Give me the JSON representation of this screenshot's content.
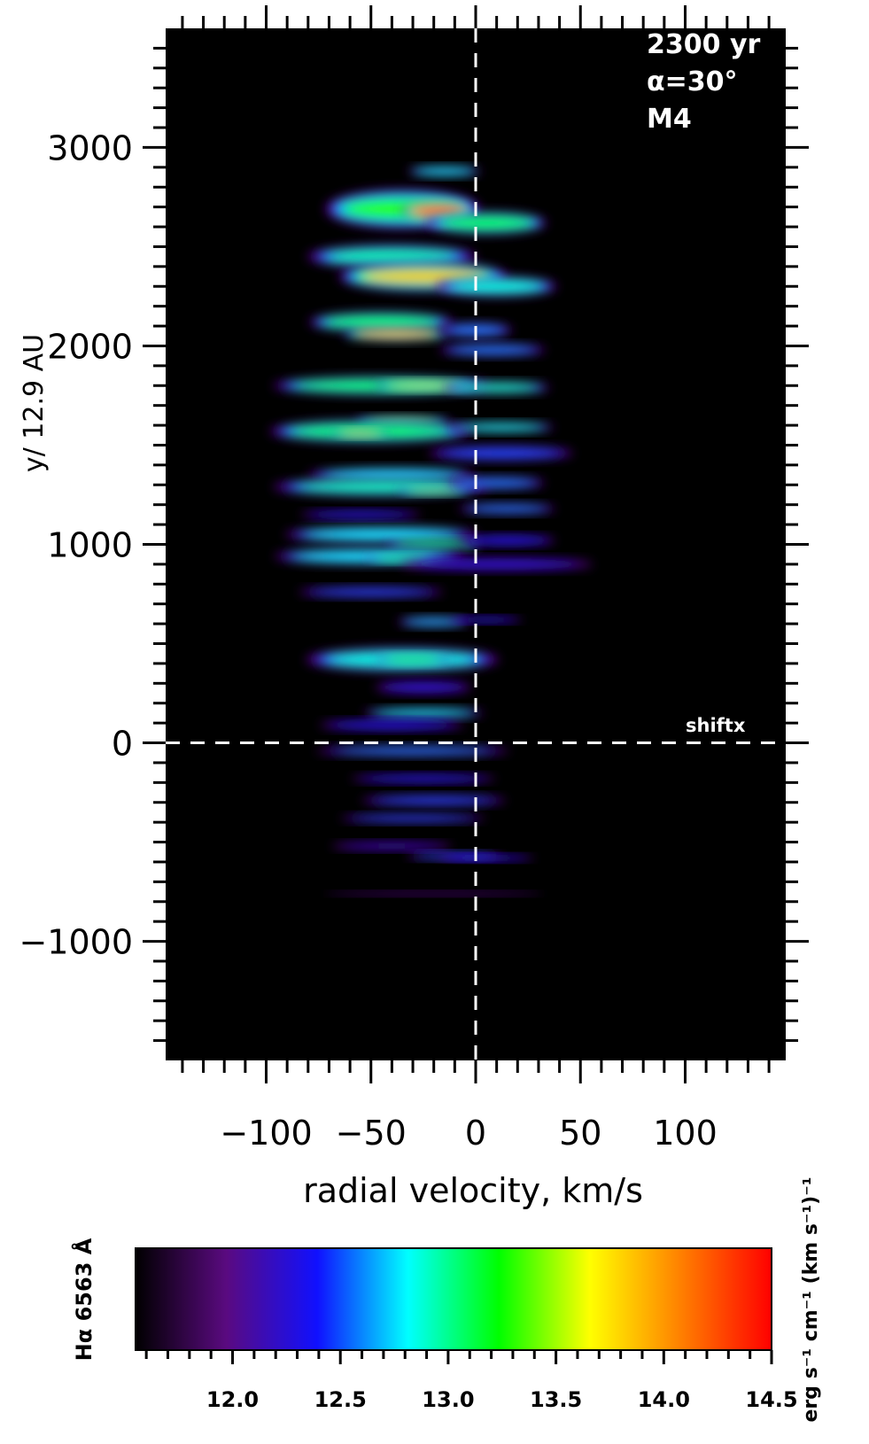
{
  "chart_data": [
    {
      "type": "heatmap",
      "xlabel": "radial velocity, km/s",
      "ylabel": "y/ 12.9 AU",
      "xlim": [
        -148,
        148
      ],
      "ylim": [
        -1600,
        3600
      ],
      "xticks": [
        -100,
        -50,
        0,
        50,
        100
      ],
      "xtick_labels": [
        "−100",
        "−50",
        "0",
        "50",
        "100"
      ],
      "yticks": [
        -1000,
        0,
        1000,
        2000,
        3000
      ],
      "ytick_labels": [
        "−1000",
        "0",
        "1000",
        "2000",
        "3000"
      ],
      "grid": false,
      "background": "#000000",
      "annotations": {
        "time": "2300 yr",
        "angle": "α=30°",
        "model": "M4",
        "shift_label": "shiftx"
      },
      "reference_lines": {
        "x": 0,
        "y": 0,
        "style": "dashed",
        "color": "#ffffff"
      },
      "blobs": [
        {
          "v": -15,
          "y": 2880,
          "w": 15,
          "h": 25,
          "level": 12.8
        },
        {
          "v": -35,
          "y": 2690,
          "w": 32,
          "h": 100,
          "level": 13.3
        },
        {
          "v": -18,
          "y": 2680,
          "w": 15,
          "h": 55,
          "level": 14.45
        },
        {
          "v": 5,
          "y": 2620,
          "w": 25,
          "h": 55,
          "level": 13.2
        },
        {
          "v": -40,
          "y": 2450,
          "w": 35,
          "h": 60,
          "level": 13.0
        },
        {
          "v": -25,
          "y": 2350,
          "w": 35,
          "h": 75,
          "level": 13.9
        },
        {
          "v": 10,
          "y": 2300,
          "w": 25,
          "h": 50,
          "level": 12.9
        },
        {
          "v": -45,
          "y": 2120,
          "w": 30,
          "h": 50,
          "level": 13.2
        },
        {
          "v": -38,
          "y": 2060,
          "w": 22,
          "h": 35,
          "level": 14.0
        },
        {
          "v": 0,
          "y": 2080,
          "w": 15,
          "h": 35,
          "level": 12.6
        },
        {
          "v": 8,
          "y": 1980,
          "w": 22,
          "h": 30,
          "level": 12.6
        },
        {
          "v": -45,
          "y": 1800,
          "w": 45,
          "h": 45,
          "level": 13.2
        },
        {
          "v": -25,
          "y": 1800,
          "w": 20,
          "h": 25,
          "level": 13.6
        },
        {
          "v": 10,
          "y": 1790,
          "w": 22,
          "h": 30,
          "level": 13.0
        },
        {
          "v": -35,
          "y": 1620,
          "w": 20,
          "h": 25,
          "level": 13.5
        },
        {
          "v": -50,
          "y": 1570,
          "w": 42,
          "h": 55,
          "level": 13.2
        },
        {
          "v": -55,
          "y": 1560,
          "w": 12,
          "h": 20,
          "level": 13.9
        },
        {
          "v": 12,
          "y": 1590,
          "w": 22,
          "h": 25,
          "level": 12.9
        },
        {
          "v": 12,
          "y": 1460,
          "w": 30,
          "h": 35,
          "level": 12.5
        },
        {
          "v": -40,
          "y": 1350,
          "w": 35,
          "h": 35,
          "level": 12.8
        },
        {
          "v": -45,
          "y": 1290,
          "w": 45,
          "h": 45,
          "level": 13.0
        },
        {
          "v": -20,
          "y": 1270,
          "w": 15,
          "h": 20,
          "level": 13.5
        },
        {
          "v": 10,
          "y": 1310,
          "w": 20,
          "h": 30,
          "level": 12.6
        },
        {
          "v": -55,
          "y": 1150,
          "w": 25,
          "h": 20,
          "level": 12.4
        },
        {
          "v": 15,
          "y": 1180,
          "w": 20,
          "h": 25,
          "level": 12.6
        },
        {
          "v": -45,
          "y": 1050,
          "w": 40,
          "h": 40,
          "level": 12.8
        },
        {
          "v": -20,
          "y": 1000,
          "w": 20,
          "h": 25,
          "level": 13.2
        },
        {
          "v": 15,
          "y": 1020,
          "w": 20,
          "h": 25,
          "level": 12.4
        },
        {
          "v": -50,
          "y": 940,
          "w": 40,
          "h": 40,
          "level": 12.8
        },
        {
          "v": -35,
          "y": 930,
          "w": 15,
          "h": 20,
          "level": 13.2
        },
        {
          "v": 10,
          "y": 900,
          "w": 40,
          "h": 30,
          "level": 12.3
        },
        {
          "v": -50,
          "y": 760,
          "w": 30,
          "h": 25,
          "level": 12.5
        },
        {
          "v": -20,
          "y": 610,
          "w": 15,
          "h": 25,
          "level": 12.7
        },
        {
          "v": 5,
          "y": 620,
          "w": 15,
          "h": 15,
          "level": 12.4
        },
        {
          "v": -35,
          "y": 420,
          "w": 40,
          "h": 60,
          "level": 12.9
        },
        {
          "v": -30,
          "y": 420,
          "w": 15,
          "h": 25,
          "level": 13.3
        },
        {
          "v": -25,
          "y": 280,
          "w": 20,
          "h": 30,
          "level": 12.3
        },
        {
          "v": -25,
          "y": 150,
          "w": 25,
          "h": 25,
          "level": 12.8
        },
        {
          "v": -40,
          "y": 90,
          "w": 30,
          "h": 25,
          "level": 12.4
        },
        {
          "v": -30,
          "y": -40,
          "w": 40,
          "h": 25,
          "level": 12.6
        },
        {
          "v": -25,
          "y": -180,
          "w": 30,
          "h": 20,
          "level": 12.4
        },
        {
          "v": -20,
          "y": -290,
          "w": 30,
          "h": 25,
          "level": 12.5
        },
        {
          "v": -30,
          "y": -380,
          "w": 30,
          "h": 20,
          "level": 12.5
        },
        {
          "v": -40,
          "y": -520,
          "w": 25,
          "h": 20,
          "level": 12.2
        },
        {
          "v": -10,
          "y": -570,
          "w": 20,
          "h": 18,
          "level": 12.5
        },
        {
          "v": 5,
          "y": -580,
          "w": 20,
          "h": 15,
          "level": 12.4
        },
        {
          "v": -20,
          "y": -760,
          "w": 45,
          "h": 10,
          "level": 12.0
        }
      ]
    },
    {
      "type": "colorbar",
      "title": "Hα 6563 Å",
      "unit": "erg s⁻¹ cm⁻¹ (km s⁻¹)⁻¹",
      "range": [
        11.55,
        14.5
      ],
      "ticks": [
        12.0,
        12.5,
        13.0,
        13.5,
        14.0,
        14.5
      ],
      "tick_labels": [
        "12.0",
        "12.5",
        "13.0",
        "13.5",
        "14.0",
        "14.5"
      ],
      "colormap": [
        "#000000",
        "#5a0a80",
        "#1010ff",
        "#00ffff",
        "#00ff00",
        "#ffff00",
        "#ff8000",
        "#ff0000"
      ]
    }
  ]
}
